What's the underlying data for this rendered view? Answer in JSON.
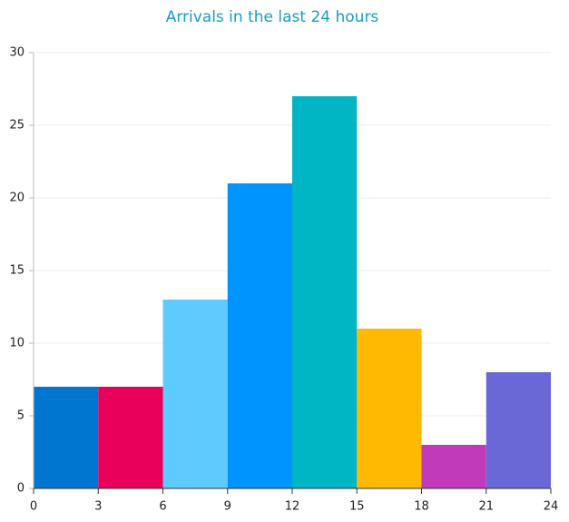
{
  "chart_data": {
    "type": "histogram",
    "title": "Arrivals in the last 24 hours",
    "bins": [
      0,
      3,
      6,
      9,
      12,
      15,
      18,
      21,
      24
    ],
    "values": [
      7,
      7,
      13,
      21,
      27,
      11,
      3,
      8
    ],
    "colors": [
      "#0076d1",
      "#e8005a",
      "#5ecbff",
      "#0094ff",
      "#00b5c4",
      "#ffb900",
      "#c13ab8",
      "#6a67d6"
    ],
    "xlim": [
      0,
      24
    ],
    "xticks": [
      0,
      3,
      6,
      9,
      12,
      15,
      18,
      21,
      24
    ],
    "ylim": [
      0,
      30
    ],
    "yticks": [
      0,
      5,
      10,
      15,
      20,
      25,
      30
    ],
    "grid": true
  }
}
